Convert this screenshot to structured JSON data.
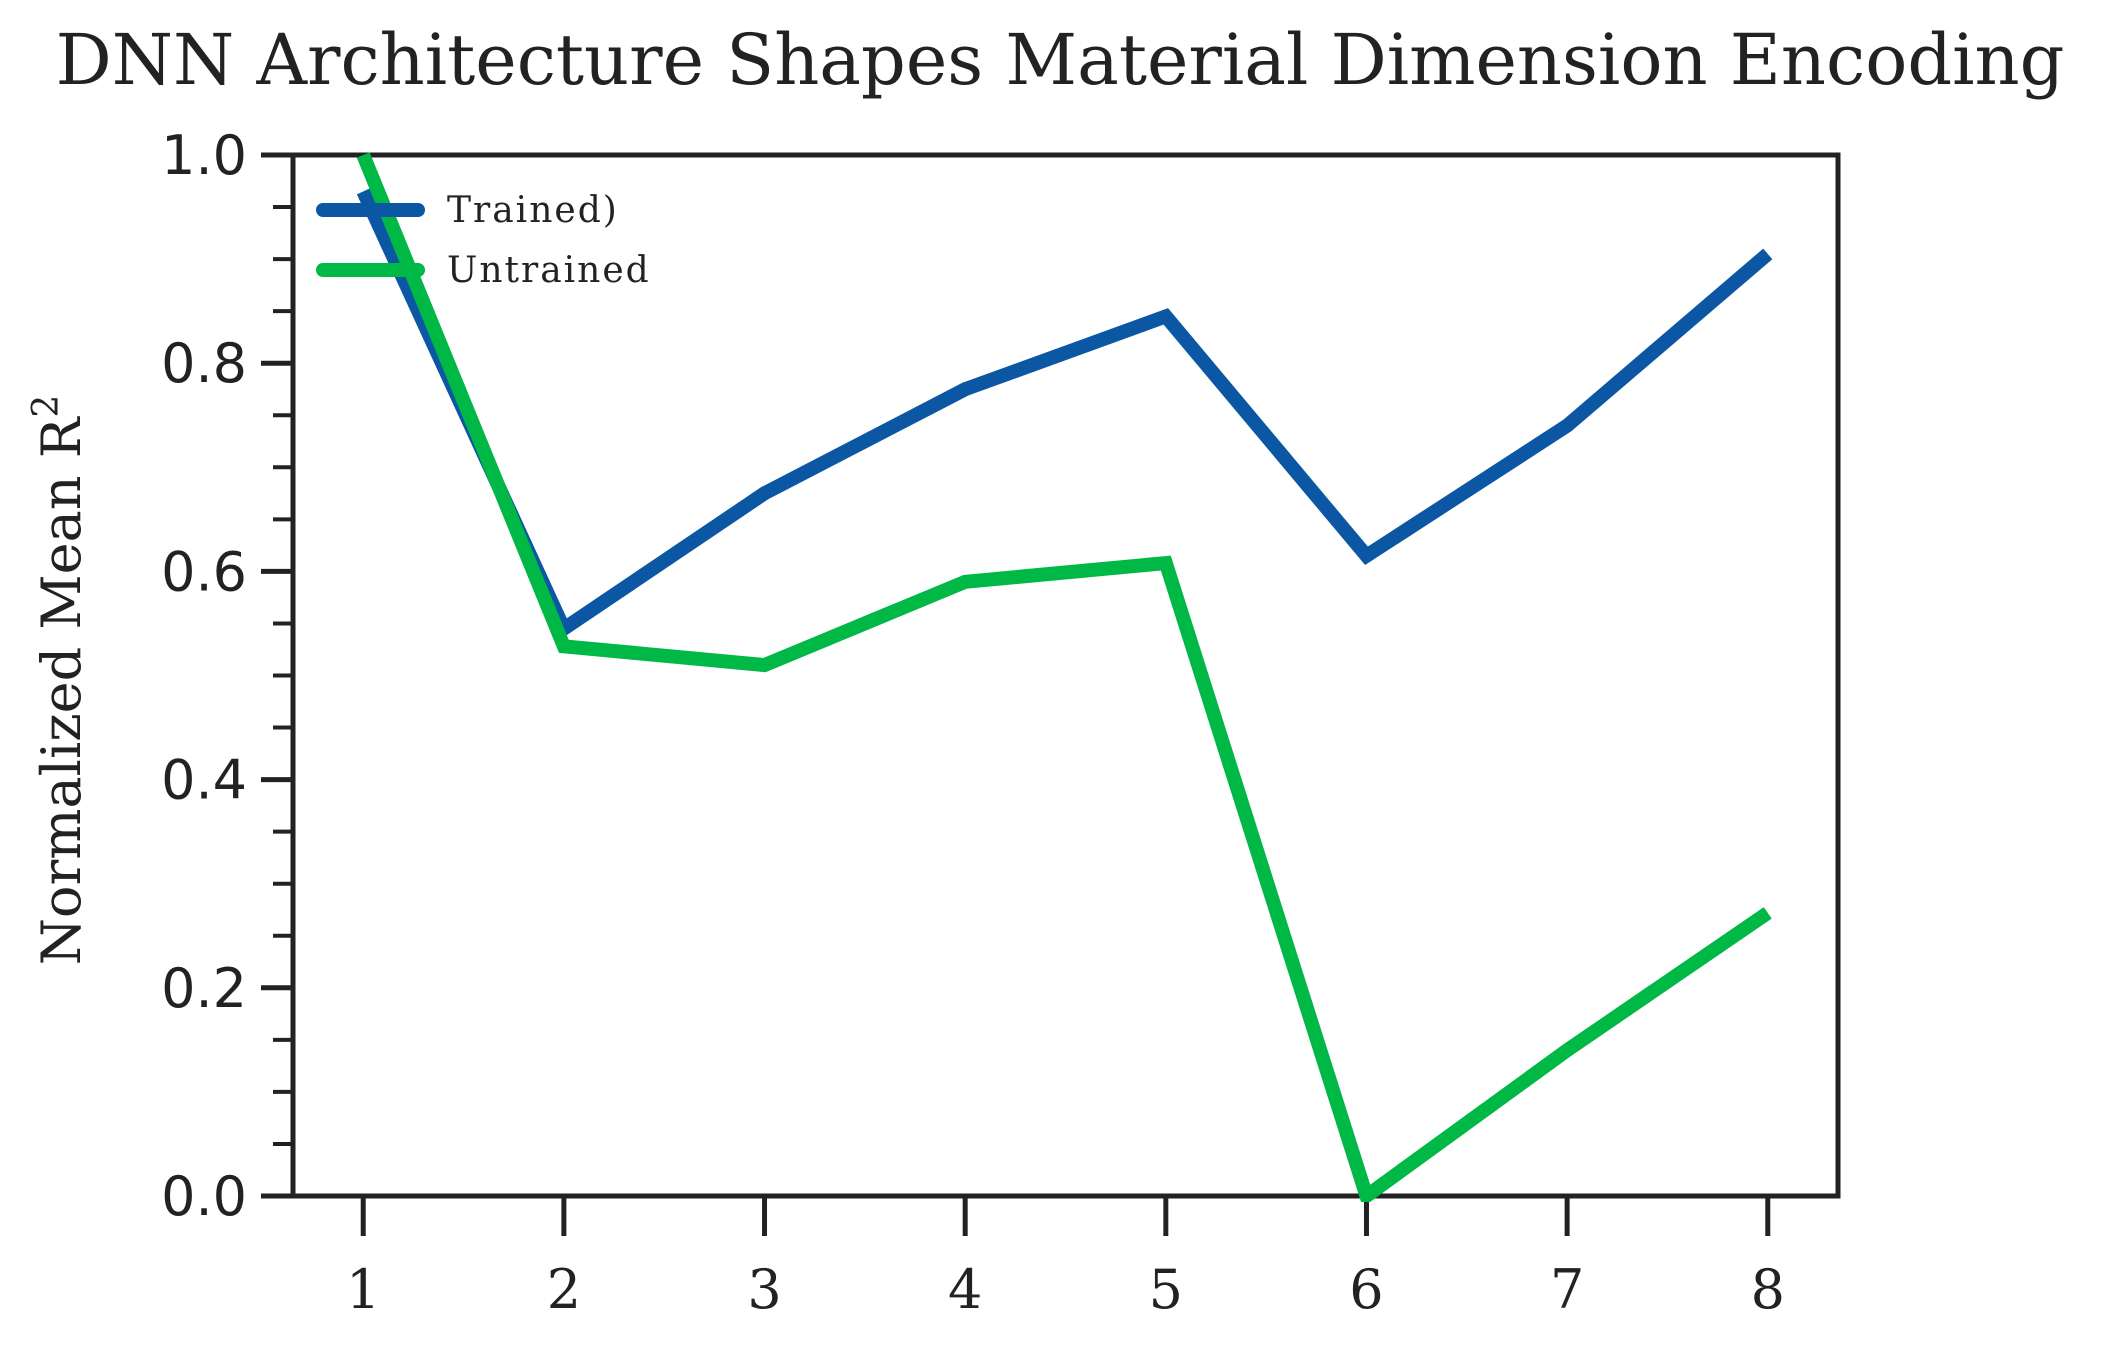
{
  "chart_data": {
    "type": "line",
    "title": "DNN Architecture Shapes Material Dimension Encoding",
    "xlabel": "",
    "ylabel": "Normalized Mean R",
    "ylabel_superscript": "2",
    "x": [
      1,
      2,
      3,
      4,
      5,
      6,
      7,
      8
    ],
    "x_tick_labels": [
      "1",
      "2",
      "3",
      "4",
      "5",
      "6",
      "7",
      "8"
    ],
    "y_tick_labels": [
      "0.0",
      "0.2",
      "0.4",
      "0.6",
      "0.8",
      "1.0"
    ],
    "ylim": [
      0.0,
      1.0
    ],
    "xlim": [
      0.65,
      8.35
    ],
    "grid": false,
    "legend_position": "top-left",
    "series": [
      {
        "name": "Trained)",
        "color": "#0b57a3",
        "values": [
          0.965,
          0.545,
          0.675,
          0.775,
          0.845,
          0.615,
          0.74,
          0.905
        ]
      },
      {
        "name": "Untrained",
        "color": "#00b845",
        "values": [
          1.0,
          0.528,
          0.51,
          0.59,
          0.608,
          0.0,
          0.14,
          0.272
        ]
      }
    ]
  }
}
